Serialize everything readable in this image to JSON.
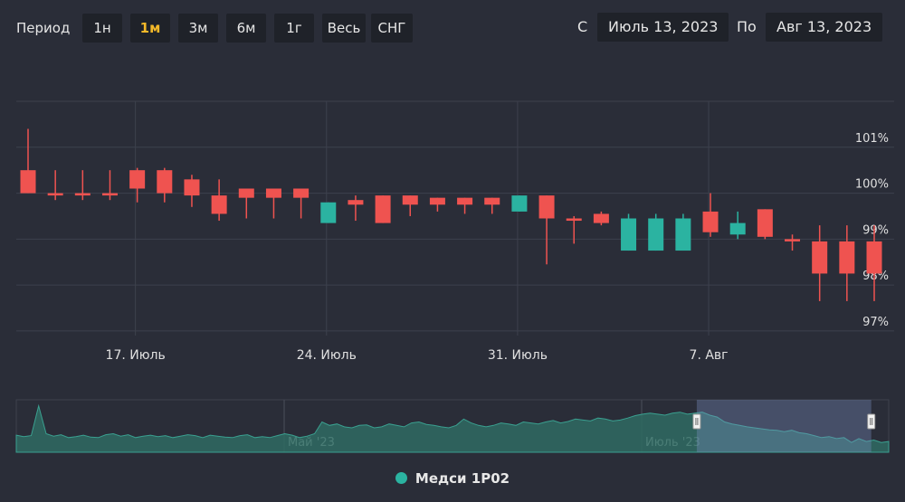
{
  "toolbar": {
    "period_label": "Период",
    "periods": [
      "1н",
      "1м",
      "3м",
      "6м",
      "1г",
      "Весь",
      "СНГ"
    ],
    "active_period": "1м",
    "from_label": "С",
    "from_date": "Июль 13, 2023",
    "to_label": "По",
    "to_date": "Авг 13, 2023"
  },
  "colors": {
    "up": "#2bb3a1",
    "down": "#ef5350",
    "active": "#f3b829",
    "background": "#2a2d38"
  },
  "chart_data": {
    "type": "candlestick",
    "y_unit": "%",
    "ylim": [
      96.9,
      102.0
    ],
    "y_ticks": [
      "97%",
      "98%",
      "99%",
      "100%",
      "101%"
    ],
    "x_tick_labels": [
      "17. Июль",
      "24. Июль",
      "31. Июль",
      "7. Авг"
    ],
    "grid": true,
    "series_name": "Медси 1Р02",
    "candles": [
      {
        "o": 100.5,
        "h": 101.4,
        "l": 100.0,
        "c": 100.0
      },
      {
        "o": 100.0,
        "h": 100.5,
        "l": 99.85,
        "c": 99.95
      },
      {
        "o": 100.0,
        "h": 100.5,
        "l": 99.85,
        "c": 99.95
      },
      {
        "o": 100.0,
        "h": 100.5,
        "l": 99.85,
        "c": 99.95
      },
      {
        "o": 100.5,
        "h": 100.55,
        "l": 99.8,
        "c": 100.1
      },
      {
        "o": 100.5,
        "h": 100.55,
        "l": 99.8,
        "c": 100.0
      },
      {
        "o": 100.3,
        "h": 100.4,
        "l": 99.7,
        "c": 99.95
      },
      {
        "o": 99.95,
        "h": 100.3,
        "l": 99.4,
        "c": 99.55
      },
      {
        "o": 100.1,
        "h": 100.1,
        "l": 99.45,
        "c": 99.9
      },
      {
        "o": 100.1,
        "h": 100.1,
        "l": 99.45,
        "c": 99.9
      },
      {
        "o": 100.1,
        "h": 100.1,
        "l": 99.45,
        "c": 99.9
      },
      {
        "o": 99.35,
        "h": 99.8,
        "l": 99.35,
        "c": 99.8
      },
      {
        "o": 99.85,
        "h": 99.95,
        "l": 99.4,
        "c": 99.75
      },
      {
        "o": 99.95,
        "h": 99.95,
        "l": 99.35,
        "c": 99.35
      },
      {
        "o": 99.95,
        "h": 99.95,
        "l": 99.5,
        "c": 99.75
      },
      {
        "o": 99.9,
        "h": 99.9,
        "l": 99.6,
        "c": 99.75
      },
      {
        "o": 99.9,
        "h": 99.9,
        "l": 99.55,
        "c": 99.75
      },
      {
        "o": 99.9,
        "h": 99.9,
        "l": 99.55,
        "c": 99.75
      },
      {
        "o": 99.6,
        "h": 99.95,
        "l": 99.6,
        "c": 99.95
      },
      {
        "o": 99.95,
        "h": 99.95,
        "l": 98.45,
        "c": 99.45
      },
      {
        "o": 99.45,
        "h": 99.5,
        "l": 98.9,
        "c": 99.4
      },
      {
        "o": 99.55,
        "h": 99.6,
        "l": 99.3,
        "c": 99.35
      },
      {
        "o": 98.75,
        "h": 99.55,
        "l": 98.75,
        "c": 99.45
      },
      {
        "o": 98.75,
        "h": 99.55,
        "l": 98.75,
        "c": 99.45
      },
      {
        "o": 98.75,
        "h": 99.55,
        "l": 98.75,
        "c": 99.45
      },
      {
        "o": 99.6,
        "h": 100.0,
        "l": 99.05,
        "c": 99.15
      },
      {
        "o": 99.1,
        "h": 99.6,
        "l": 99.0,
        "c": 99.35
      },
      {
        "o": 99.65,
        "h": 99.65,
        "l": 99.0,
        "c": 99.05
      },
      {
        "o": 99.0,
        "h": 99.1,
        "l": 98.75,
        "c": 98.95
      },
      {
        "o": 98.95,
        "h": 99.3,
        "l": 97.65,
        "c": 98.25
      },
      {
        "o": 98.95,
        "h": 99.3,
        "l": 97.65,
        "c": 98.25
      },
      {
        "o": 98.95,
        "h": 99.3,
        "l": 97.65,
        "c": 98.25
      }
    ]
  },
  "navigator": {
    "labels": [
      "Май '23",
      "Июль '23"
    ],
    "series": [
      0.35,
      0.32,
      0.34,
      0.95,
      0.38,
      0.33,
      0.36,
      0.3,
      0.32,
      0.35,
      0.31,
      0.3,
      0.36,
      0.38,
      0.33,
      0.36,
      0.3,
      0.33,
      0.35,
      0.32,
      0.34,
      0.3,
      0.33,
      0.36,
      0.34,
      0.3,
      0.35,
      0.33,
      0.31,
      0.3,
      0.34,
      0.36,
      0.3,
      0.32,
      0.3,
      0.34,
      0.38,
      0.35,
      0.3,
      0.33,
      0.38,
      0.62,
      0.55,
      0.58,
      0.52,
      0.5,
      0.55,
      0.56,
      0.5,
      0.52,
      0.58,
      0.55,
      0.52,
      0.6,
      0.62,
      0.57,
      0.55,
      0.52,
      0.5,
      0.55,
      0.68,
      0.6,
      0.55,
      0.52,
      0.55,
      0.6,
      0.58,
      0.55,
      0.62,
      0.6,
      0.58,
      0.62,
      0.65,
      0.6,
      0.63,
      0.68,
      0.66,
      0.64,
      0.7,
      0.68,
      0.64,
      0.66,
      0.7,
      0.75,
      0.78,
      0.8,
      0.78,
      0.76,
      0.8,
      0.82,
      0.78,
      0.8,
      0.82,
      0.76,
      0.72,
      0.62,
      0.58,
      0.55,
      0.52,
      0.5,
      0.48,
      0.46,
      0.45,
      0.42,
      0.45,
      0.4,
      0.38,
      0.34,
      0.3,
      0.32,
      0.28,
      0.3,
      0.2,
      0.28,
      0.22,
      0.25,
      0.2,
      0.22
    ],
    "selected_from": 0.78,
    "selected_to": 0.98
  }
}
